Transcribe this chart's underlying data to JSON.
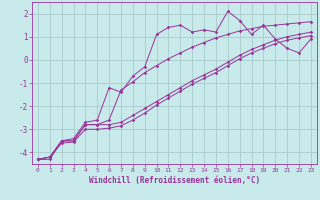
{
  "xlabel": "Windchill (Refroidissement éolien,°C)",
  "background_color": "#c8eaea",
  "grid_color": "#aacccc",
  "line_color": "#993399",
  "xlim": [
    -0.5,
    23.5
  ],
  "ylim": [
    -4.5,
    2.5
  ],
  "xticks": [
    0,
    1,
    2,
    3,
    4,
    5,
    6,
    7,
    8,
    9,
    10,
    11,
    12,
    13,
    14,
    15,
    16,
    17,
    18,
    19,
    20,
    21,
    22,
    23
  ],
  "yticks": [
    -4,
    -3,
    -2,
    -1,
    0,
    1,
    2
  ],
  "line1_x": [
    0,
    1,
    2,
    3,
    4,
    5,
    6,
    7,
    8,
    9,
    10,
    11,
    12,
    13,
    14,
    15,
    16,
    17,
    18,
    19,
    20,
    21,
    22,
    23
  ],
  "line1_y": [
    -4.3,
    -4.3,
    -3.5,
    -3.4,
    -2.7,
    -2.6,
    -1.2,
    -1.4,
    -0.7,
    -0.3,
    1.1,
    1.4,
    1.5,
    1.2,
    1.3,
    1.2,
    2.1,
    1.7,
    1.1,
    1.5,
    0.9,
    0.5,
    0.3,
    0.9
  ],
  "line2_x": [
    0,
    1,
    2,
    3,
    4,
    5,
    6,
    7,
    8,
    9,
    10,
    11,
    12,
    13,
    14,
    15,
    16,
    17,
    18,
    19,
    20,
    21,
    22,
    23
  ],
  "line2_y": [
    -4.3,
    -4.2,
    -3.5,
    -3.5,
    -2.8,
    -2.8,
    -2.6,
    -1.3,
    -0.95,
    -0.55,
    -0.25,
    0.05,
    0.3,
    0.55,
    0.75,
    0.95,
    1.1,
    1.25,
    1.35,
    1.45,
    1.5,
    1.55,
    1.6,
    1.65
  ],
  "line3_x": [
    0,
    1,
    2,
    3,
    4,
    5,
    6,
    7,
    8,
    9,
    10,
    11,
    12,
    13,
    14,
    15,
    16,
    17,
    18,
    19,
    20,
    21,
    22,
    23
  ],
  "line3_y": [
    -4.3,
    -4.2,
    -3.5,
    -3.5,
    -2.8,
    -2.8,
    -2.8,
    -2.7,
    -2.4,
    -2.1,
    -1.8,
    -1.5,
    -1.2,
    -0.9,
    -0.65,
    -0.4,
    -0.1,
    0.2,
    0.45,
    0.65,
    0.85,
    1.0,
    1.1,
    1.2
  ],
  "line4_x": [
    0,
    1,
    2,
    3,
    4,
    5,
    6,
    7,
    8,
    9,
    10,
    11,
    12,
    13,
    14,
    15,
    16,
    17,
    18,
    19,
    20,
    21,
    22,
    23
  ],
  "line4_y": [
    -4.3,
    -4.2,
    -3.6,
    -3.55,
    -3.0,
    -3.0,
    -2.95,
    -2.85,
    -2.6,
    -2.3,
    -1.95,
    -1.65,
    -1.35,
    -1.05,
    -0.8,
    -0.55,
    -0.25,
    0.05,
    0.3,
    0.5,
    0.7,
    0.85,
    0.95,
    1.05
  ]
}
